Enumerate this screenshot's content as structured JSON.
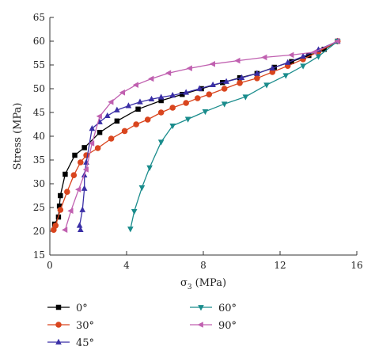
{
  "chart_data": {
    "type": "line",
    "title": "",
    "xlabel": "σ",
    "xlabel_sub": "3",
    "xlabel_unit": " (MPa)",
    "ylabel": "Stress (MPa)",
    "xlim": [
      0,
      16
    ],
    "ylim": [
      15,
      65
    ],
    "xticks": [
      0,
      4,
      8,
      12,
      16
    ],
    "yticks": [
      15,
      20,
      25,
      30,
      35,
      40,
      45,
      50,
      55,
      60,
      65
    ],
    "grid": false,
    "legend_position": "bottom",
    "series": [
      {
        "name": "0°",
        "color": "#000000",
        "marker": "square",
        "x": [
          0.25,
          0.45,
          0.5,
          0.55,
          0.8,
          1.3,
          1.8,
          2.6,
          3.5,
          4.6,
          5.8,
          6.9,
          7.9,
          9.0,
          9.9,
          10.8,
          11.7,
          12.6,
          13.5,
          14.3,
          15.0
        ],
        "y": [
          21.5,
          23.0,
          25.3,
          27.5,
          32.0,
          36.0,
          37.6,
          40.8,
          43.2,
          45.7,
          47.5,
          48.8,
          50.0,
          51.3,
          52.3,
          53.2,
          54.5,
          55.7,
          57.0,
          58.3,
          60.0
        ]
      },
      {
        "name": "30°",
        "color": "#d9451e",
        "marker": "circle",
        "x": [
          0.2,
          0.3,
          0.55,
          0.9,
          1.25,
          1.6,
          1.9,
          2.5,
          3.2,
          3.9,
          4.5,
          5.1,
          5.8,
          6.4,
          7.1,
          7.7,
          8.3,
          9.1,
          9.9,
          10.8,
          11.6,
          12.4,
          13.2,
          14.0,
          15.0
        ],
        "y": [
          20.3,
          21.2,
          24.5,
          28.3,
          31.8,
          34.5,
          36.0,
          37.5,
          39.5,
          41.1,
          42.5,
          43.5,
          45.0,
          46.0,
          47.0,
          48.0,
          48.8,
          50.0,
          51.2,
          52.2,
          53.5,
          54.8,
          56.2,
          57.8,
          60.0
        ]
      },
      {
        "name": "45°",
        "color": "#3a2fa6",
        "marker": "triangle-up",
        "x": [
          1.6,
          1.55,
          1.7,
          1.8,
          1.8,
          1.9,
          2.2,
          2.6,
          3.0,
          3.5,
          4.1,
          4.7,
          5.3,
          5.8,
          6.4,
          7.1,
          7.8,
          8.5,
          9.2,
          10.0,
          10.8,
          11.6,
          12.4,
          13.2,
          14.0,
          15.0
        ],
        "y": [
          20.3,
          21.2,
          24.5,
          29.0,
          31.8,
          34.5,
          41.6,
          43.0,
          44.3,
          45.5,
          46.4,
          47.2,
          47.8,
          48.2,
          48.6,
          49.2,
          50.0,
          50.8,
          51.5,
          52.3,
          53.2,
          54.3,
          55.5,
          56.8,
          58.2,
          60.0
        ]
      },
      {
        "name": "60°",
        "color": "#1a8c8c",
        "marker": "triangle-down",
        "x": [
          4.2,
          4.4,
          4.8,
          5.2,
          5.8,
          6.4,
          7.2,
          8.1,
          9.1,
          10.2,
          11.3,
          12.3,
          13.2,
          14.0,
          15.0
        ],
        "y": [
          20.5,
          24.2,
          29.2,
          33.4,
          38.8,
          42.2,
          43.6,
          45.2,
          46.8,
          48.3,
          50.8,
          52.8,
          54.8,
          56.8,
          60.0
        ]
      },
      {
        "name": "90°",
        "color": "#c060b0",
        "marker": "triangle-left",
        "x": [
          0.8,
          1.1,
          1.5,
          1.9,
          2.2,
          2.6,
          3.2,
          3.8,
          4.5,
          5.3,
          6.2,
          7.3,
          8.5,
          9.8,
          11.2,
          12.6,
          13.8,
          15.0
        ],
        "y": [
          20.3,
          24.3,
          28.8,
          33.0,
          38.5,
          44.2,
          47.2,
          49.2,
          50.8,
          52.1,
          53.3,
          54.3,
          55.2,
          55.9,
          56.6,
          57.1,
          57.7,
          60.0
        ]
      }
    ]
  }
}
